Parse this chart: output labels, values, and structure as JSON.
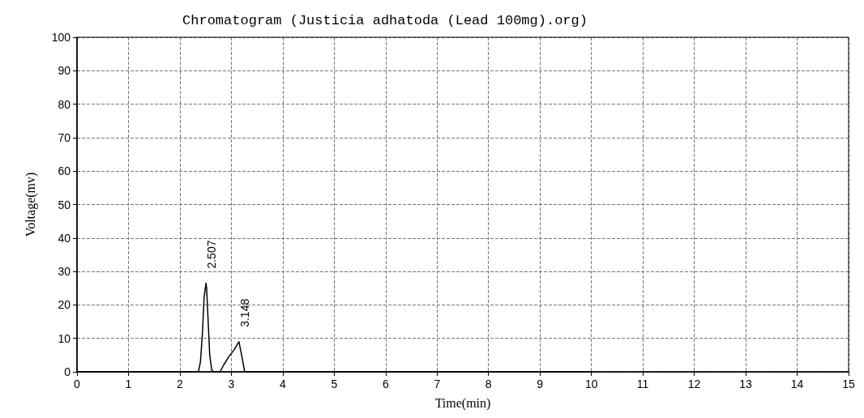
{
  "chart_data": {
    "type": "line",
    "title": "Chromatogram (Justicia adhatoda (Lead 100mg).org)",
    "xlabel": "Time(min)",
    "ylabel": "Voltage(mv)",
    "x": [
      0,
      2.36,
      2.4,
      2.44,
      2.47,
      2.507,
      2.52,
      2.55,
      2.58,
      2.62,
      2.66,
      2.78,
      2.85,
      2.95,
      3.05,
      3.148,
      3.2,
      3.26,
      10
    ],
    "series": [
      {
        "color": "#000000",
        "values": [
          0,
          0,
          3,
          12,
          22,
          26.5,
          25,
          15,
          5,
          0.5,
          0,
          0,
          2,
          4.5,
          6.5,
          9,
          5,
          0,
          0
        ]
      }
    ],
    "xlim": [
      0,
      15
    ],
    "xticks": [
      0,
      1,
      2,
      3,
      4,
      5,
      6,
      7,
      8,
      9,
      10,
      11,
      12,
      13,
      14,
      15
    ],
    "ylim": [
      0,
      100
    ],
    "yticks": [
      0,
      10,
      20,
      30,
      40,
      50,
      60,
      70,
      80,
      90,
      100
    ],
    "grid": true,
    "marker": "none",
    "line_style": "solid",
    "annotations": [
      {
        "text": "2.507",
        "x": 2.507,
        "y": 26.5
      },
      {
        "text": "3.148",
        "x": 3.148,
        "y": 9
      }
    ]
  }
}
